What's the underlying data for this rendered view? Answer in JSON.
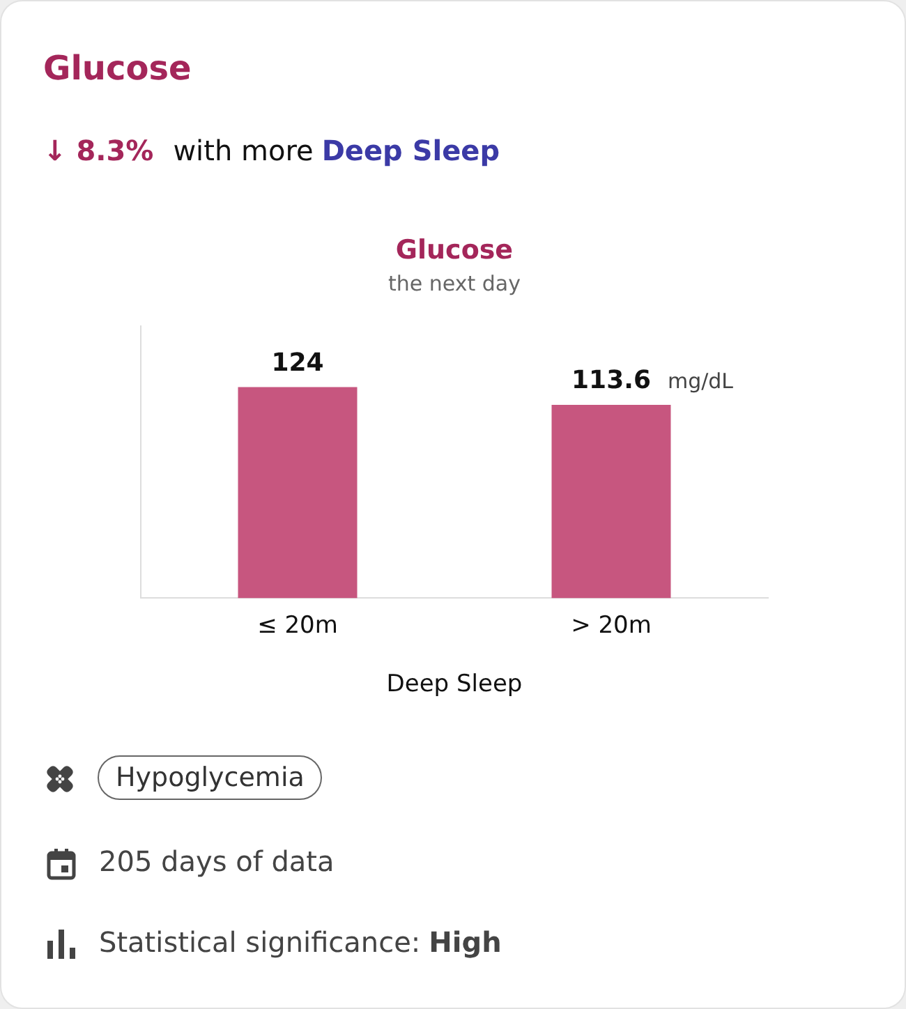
{
  "chart_data": {
    "type": "bar",
    "title": "Glucose",
    "subtitle": "the next day",
    "xlabel": "Deep Sleep",
    "categories": [
      "≤ 20m",
      "> 20m"
    ],
    "values": [
      124,
      113.6
    ],
    "color": "#c7567f",
    "data_labels": true,
    "grid": false,
    "tick_labels": "x",
    "legend": false,
    "annotations": [
      "Glucose",
      "↓ 8.3%",
      "with more",
      "Deep Sleep",
      "mg/dL",
      "Hypoglycemia",
      "205 days of data",
      "Statistical significance:",
      "High"
    ]
  }
}
